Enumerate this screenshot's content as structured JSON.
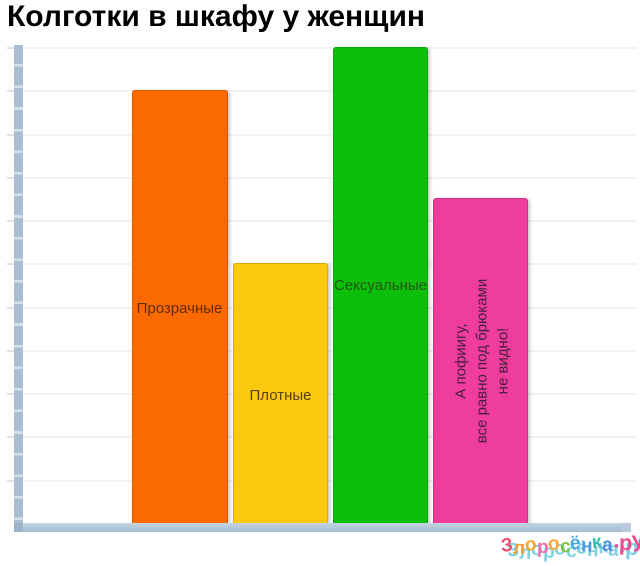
{
  "title": "Колготки в шкафу у женщин",
  "chart_data": {
    "type": "bar",
    "title": "Колготки в шкафу у женщин",
    "categories": [
      "Прозрачные",
      "Плотные",
      "Сексуальные",
      "А пофиигу, все равно под брюками не видно!"
    ],
    "values": [
      10,
      6,
      11,
      7.5
    ],
    "ylim": [
      0,
      11
    ],
    "xlabel": "",
    "ylabel": "",
    "legend": "none",
    "axis_tick_labels": "none shown; values estimated in horizontal-gridline units",
    "grid": "horizontal light-gray gridlines, steel-blue axis bars",
    "labels_inside_bars": true,
    "bar_colors": [
      "#fb6a01",
      "#fdc90f",
      "#0dbe0b",
      "#ef3d9e"
    ],
    "label_colors": [
      "#5e2d05",
      "#574106",
      "#1f5a10",
      "#47203d"
    ],
    "rotated_label_index": 3,
    "rotated_label_lines": [
      "А пофиигу,",
      "все равно под брюками",
      "не видно!"
    ],
    "axis_color": "#a9bed3",
    "grid_color": "#f2f2f2",
    "background_color": "#ffffff"
  },
  "watermark": {
    "text": "Злоросёнка.ру",
    "letter_colors": [
      "#e8506e",
      "#f59d33",
      "#f5a833",
      "#ee6fae",
      "#f5a833",
      "#82c243",
      "#45abdc",
      "#4a9bdc",
      "#38bcb0",
      "#4a90dc",
      "#e84b8e",
      "#e84b8e",
      "#e84b8e"
    ],
    "shadow_color": "#55c2d8"
  }
}
